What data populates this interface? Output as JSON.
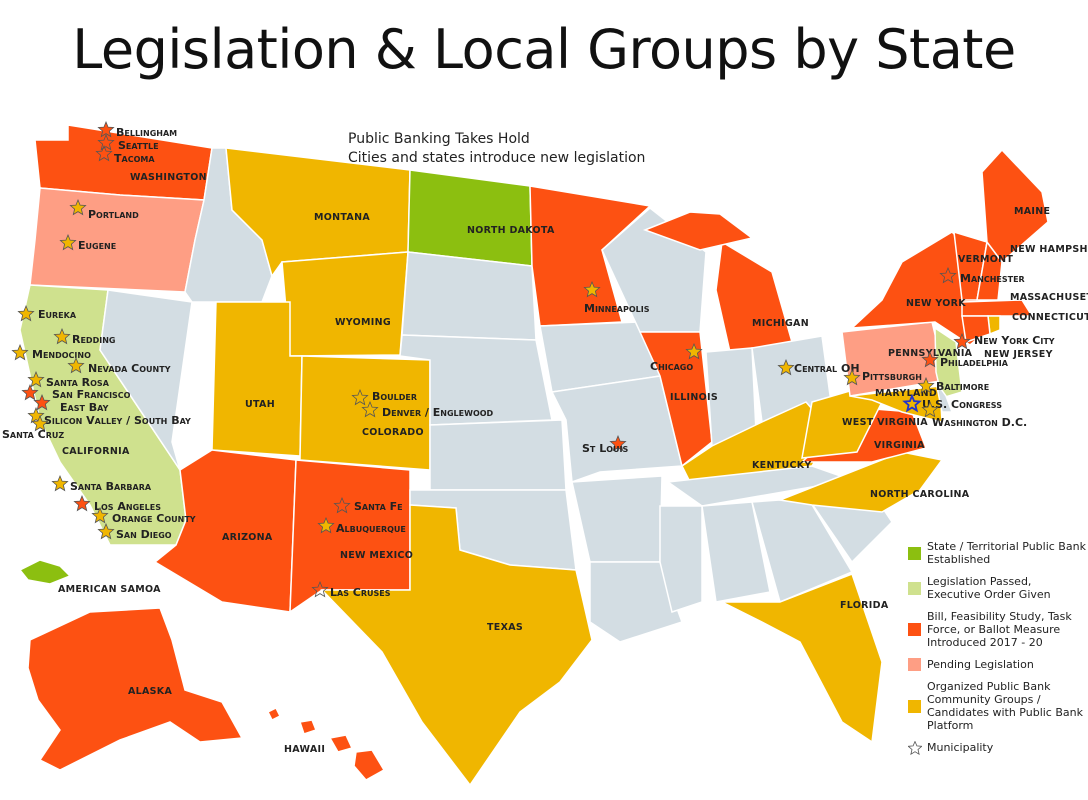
{
  "title": "Legislation & Local Groups by State",
  "subtitle": {
    "line1": "Public Banking Takes Hold",
    "line2": "Cities and states introduce new legislation"
  },
  "colors": {
    "established": "#8cbf10",
    "passed": "#cfe18e",
    "introduced": "#fd5112",
    "pending": "#fe9e84",
    "organized": "#f0b600",
    "none": "#d3dde3",
    "star_outline": "#555555",
    "congress_star": "#2233cc"
  },
  "legend": [
    {
      "key": "established",
      "label": "State / Territorial Public Bank Established"
    },
    {
      "key": "passed",
      "label": "Legislation Passed, Executive Order Given"
    },
    {
      "key": "introduced",
      "label": "Bill, Feasibility Study, Task Force, or Ballot Measure Introduced 2017 - 20"
    },
    {
      "key": "pending",
      "label": "Pending Legislation"
    },
    {
      "key": "organized",
      "label": "Organized Public Bank Community Groups / Candidates with Public Bank Platform"
    },
    {
      "key": "municipality",
      "label": "Municipality"
    }
  ],
  "states": {
    "WA": {
      "label": "WASHINGTON",
      "status": "introduced"
    },
    "OR": {
      "label": "",
      "status": "pending"
    },
    "CA": {
      "label": "CALIFORNIA",
      "status": "passed"
    },
    "NV": {
      "label": "",
      "status": "none"
    },
    "ID": {
      "label": "",
      "status": "none"
    },
    "MT": {
      "label": "MONTANA",
      "status": "organized"
    },
    "WY": {
      "label": "WYOMING",
      "status": "organized"
    },
    "UT": {
      "label": "UTAH",
      "status": "organized"
    },
    "CO": {
      "label": "COLORADO",
      "status": "organized"
    },
    "AZ": {
      "label": "ARIZONA",
      "status": "introduced"
    },
    "NM": {
      "label": "NEW MEXICO",
      "status": "introduced"
    },
    "ND": {
      "label": "NORTH DAKOTA",
      "status": "established"
    },
    "SD": {
      "label": "",
      "status": "none"
    },
    "NE": {
      "label": "",
      "status": "none"
    },
    "KS": {
      "label": "",
      "status": "none"
    },
    "OK": {
      "label": "",
      "status": "none"
    },
    "TX": {
      "label": "TEXAS",
      "status": "organized"
    },
    "MN": {
      "label": "",
      "status": "introduced"
    },
    "IA": {
      "label": "",
      "status": "none"
    },
    "MO": {
      "label": "",
      "status": "none"
    },
    "AR": {
      "label": "",
      "status": "none"
    },
    "LA": {
      "label": "",
      "status": "none"
    },
    "WI": {
      "label": "",
      "status": "none"
    },
    "IL": {
      "label": "ILLINOIS",
      "status": "introduced"
    },
    "MI": {
      "label": "MICHIGAN",
      "status": "introduced"
    },
    "MIU": {
      "label": "",
      "status": "introduced"
    },
    "IN": {
      "label": "",
      "status": "none"
    },
    "OH": {
      "label": "",
      "status": "none"
    },
    "KY": {
      "label": "KENTUCKY",
      "status": "organized"
    },
    "TN": {
      "label": "",
      "status": "none"
    },
    "MS": {
      "label": "",
      "status": "none"
    },
    "AL": {
      "label": "",
      "status": "none"
    },
    "GA": {
      "label": "",
      "status": "none"
    },
    "FL": {
      "label": "FLORIDA",
      "status": "organized"
    },
    "SC": {
      "label": "",
      "status": "none"
    },
    "NC": {
      "label": "NORTH CAROLINA",
      "status": "organized"
    },
    "VA": {
      "label": "VIRGINIA",
      "status": "introduced"
    },
    "WV": {
      "label": "WEST VIRGINIA",
      "status": "organized"
    },
    "PA": {
      "label": "PENNSYLVANIA",
      "status": "pending"
    },
    "NY": {
      "label": "NEW YORK",
      "status": "introduced"
    },
    "VT": {
      "label": "VERMONT",
      "status": "introduced"
    },
    "NH": {
      "label": "NEW HAMPSHIRE",
      "status": "introduced"
    },
    "ME": {
      "label": "MAINE",
      "status": "introduced"
    },
    "MA": {
      "label": "MASSACHUSETTS",
      "status": "introduced"
    },
    "RI": {
      "label": "",
      "status": "organized"
    },
    "CT": {
      "label": "CONNECTICUT",
      "status": "introduced"
    },
    "NJ": {
      "label": "NEW JERSEY",
      "status": "passed"
    },
    "MD": {
      "label": "MARYLAND",
      "status": "organized"
    },
    "DE": {
      "label": "",
      "status": "none"
    },
    "AK": {
      "label": "ALASKA",
      "status": "introduced"
    },
    "HI": {
      "label": "HAWAII",
      "status": "introduced"
    },
    "AS": {
      "label": "AMERICAN SAMOA",
      "status": "established"
    }
  },
  "municipalities": [
    {
      "name": "Bellingham",
      "type": "introduced"
    },
    {
      "name": "Seattle",
      "type": "introduced"
    },
    {
      "name": "Tacoma",
      "type": "outline"
    },
    {
      "name": "Portland",
      "type": "organized"
    },
    {
      "name": "Eugene",
      "type": "organized"
    },
    {
      "name": "Eureka",
      "type": "organized"
    },
    {
      "name": "Redding",
      "type": "organized"
    },
    {
      "name": "Mendocino",
      "type": "organized"
    },
    {
      "name": "Nevada County",
      "type": "organized"
    },
    {
      "name": "Santa Rosa",
      "type": "organized"
    },
    {
      "name": "San Francisco",
      "type": "introduced"
    },
    {
      "name": "East Bay",
      "type": "introduced"
    },
    {
      "name": "Silicon Valley / South Bay",
      "type": "organized"
    },
    {
      "name": "Santa Cruz",
      "type": "organized"
    },
    {
      "name": "Santa Barbara",
      "type": "organized"
    },
    {
      "name": "Los Angeles",
      "type": "introduced"
    },
    {
      "name": "Orange County",
      "type": "organized"
    },
    {
      "name": "San Diego",
      "type": "organized"
    },
    {
      "name": "Boulder",
      "type": "outline"
    },
    {
      "name": "Denver / Englewood",
      "type": "outline"
    },
    {
      "name": "Santa Fe",
      "type": "outline"
    },
    {
      "name": "Albuquerque",
      "type": "organized"
    },
    {
      "name": "Las Cruses",
      "type": "outline"
    },
    {
      "name": "Minneapolis",
      "type": "organized"
    },
    {
      "name": "Chicago",
      "type": "organized"
    },
    {
      "name": "St Louis",
      "type": "introduced"
    },
    {
      "name": "Central OH",
      "type": "organized"
    },
    {
      "name": "Pittsburgh",
      "type": "organized"
    },
    {
      "name": "Philadelphia",
      "type": "introduced"
    },
    {
      "name": "New York City",
      "type": "introduced"
    },
    {
      "name": "Manchester",
      "type": "outline"
    },
    {
      "name": "Baltimore",
      "type": "organized"
    },
    {
      "name": "U.S. Congress",
      "type": "congress"
    },
    {
      "name": "Washington D.C.",
      "type": "organized"
    }
  ]
}
